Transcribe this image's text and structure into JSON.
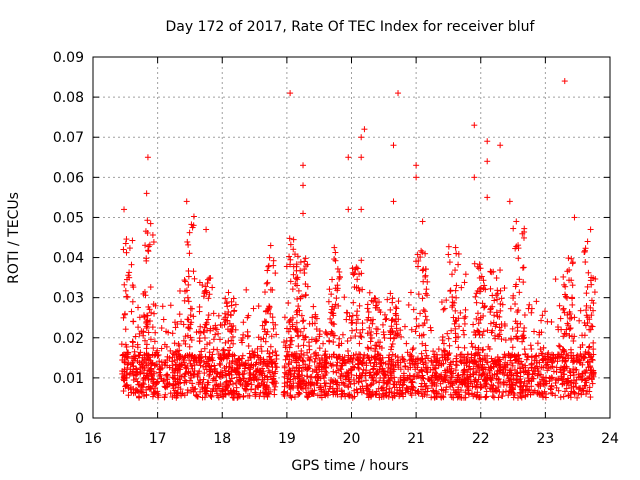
{
  "chart_data": {
    "type": "scatter",
    "title": "Day 172 of 2017, Rate Of TEC Index for receiver bluf",
    "xlabel": "GPS time / hours",
    "ylabel": "ROTI / TECUs",
    "xlim": [
      16,
      24
    ],
    "ylim": [
      0,
      0.09
    ],
    "x_ticks": [
      "16",
      "17",
      "18",
      "19",
      "20",
      "21",
      "22",
      "23",
      "24"
    ],
    "y_ticks": [
      "0",
      "0.01",
      "0.02",
      "0.03",
      "0.04",
      "0.05",
      "0.06",
      "0.07",
      "0.08",
      "0.09"
    ],
    "grid": true,
    "marker": "+",
    "marker_color": "#ff0000",
    "data_range_hours": [
      16.45,
      23.75
    ],
    "notable_points": [
      {
        "x": 16.48,
        "y": 0.052
      },
      {
        "x": 16.85,
        "y": 0.065
      },
      {
        "x": 16.83,
        "y": 0.056
      },
      {
        "x": 17.45,
        "y": 0.054
      },
      {
        "x": 17.75,
        "y": 0.047
      },
      {
        "x": 18.75,
        "y": 0.043
      },
      {
        "x": 19.05,
        "y": 0.081
      },
      {
        "x": 19.25,
        "y": 0.063
      },
      {
        "x": 19.25,
        "y": 0.058
      },
      {
        "x": 19.25,
        "y": 0.051
      },
      {
        "x": 19.95,
        "y": 0.065
      },
      {
        "x": 19.95,
        "y": 0.052
      },
      {
        "x": 20.2,
        "y": 0.072
      },
      {
        "x": 20.15,
        "y": 0.07
      },
      {
        "x": 20.15,
        "y": 0.065
      },
      {
        "x": 20.15,
        "y": 0.052
      },
      {
        "x": 20.72,
        "y": 0.081
      },
      {
        "x": 20.65,
        "y": 0.068
      },
      {
        "x": 20.65,
        "y": 0.054
      },
      {
        "x": 21.0,
        "y": 0.063
      },
      {
        "x": 21.0,
        "y": 0.06
      },
      {
        "x": 21.1,
        "y": 0.049
      },
      {
        "x": 21.9,
        "y": 0.073
      },
      {
        "x": 21.9,
        "y": 0.06
      },
      {
        "x": 22.1,
        "y": 0.069
      },
      {
        "x": 22.1,
        "y": 0.064
      },
      {
        "x": 22.1,
        "y": 0.055
      },
      {
        "x": 22.3,
        "y": 0.068
      },
      {
        "x": 22.45,
        "y": 0.054
      },
      {
        "x": 22.55,
        "y": 0.049
      },
      {
        "x": 23.3,
        "y": 0.084
      },
      {
        "x": 23.45,
        "y": 0.05
      },
      {
        "x": 23.7,
        "y": 0.047
      }
    ],
    "bulk_series": {
      "name": "ROTI",
      "description_bands": [
        {
          "x_range": [
            16.45,
            18.85
          ],
          "typical_y": [
            0.004,
            0.025
          ]
        },
        {
          "x_range": [
            18.95,
            23.75
          ],
          "typical_y": [
            0.004,
            0.03
          ]
        }
      ],
      "gap_hours": [
        18.85,
        18.95
      ]
    }
  }
}
